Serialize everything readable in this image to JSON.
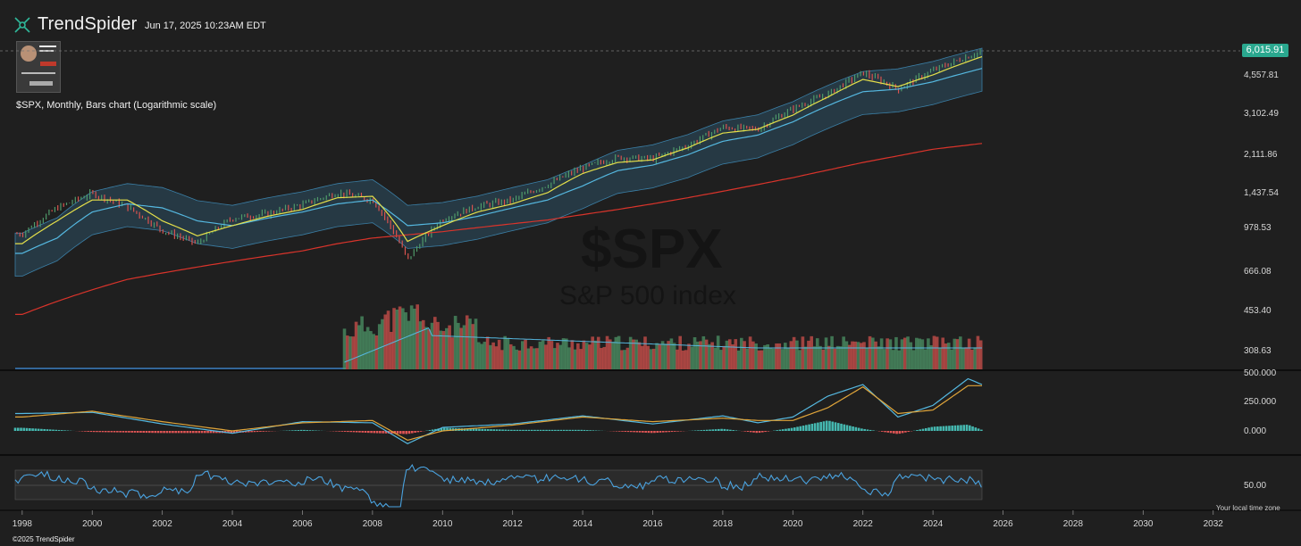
{
  "header": {
    "brand_name": "TrendSpider",
    "timestamp": "Jun 17, 2025 10:23AM EDT"
  },
  "chart_title": "$SPX, Monthly, Bars chart (Logarithmic scale)",
  "watermark": {
    "symbol": "$SPX",
    "name": "S&P 500 index"
  },
  "last_price": "6,015.91",
  "footer": {
    "timezone": "Your local time zone",
    "copyright": "©2025 TrendSpider"
  },
  "colors": {
    "background": "#1f1f1f",
    "up": "#4f9a6a",
    "down": "#d9534f",
    "price_badge": "#2aa88f",
    "band": "#3b7fa6",
    "ma_fast": "#e5e04a",
    "ma_slow": "#55b8e0",
    "ma_long": "#d9342b"
  },
  "chart_data": [
    {
      "type": "line",
      "subtype": "monthly price bars with moving averages and bands",
      "scale": "log",
      "x": [
        1998,
        1999,
        2000,
        2001,
        2002,
        2003,
        2004,
        2005,
        2006,
        2007,
        2008,
        2009,
        2010,
        2011,
        2012,
        2013,
        2014,
        2015,
        2016,
        2017,
        2018,
        2019,
        2020,
        2021,
        2022,
        2023,
        2024,
        2025.4
      ],
      "series": [
        {
          "values": [
            970,
            1250,
            1440,
            1260,
            1000,
            880,
            1130,
            1180,
            1290,
            1450,
            1350,
            750,
            1120,
            1270,
            1350,
            1570,
            1850,
            2050,
            2020,
            2300,
            2750,
            2700,
            3300,
            3800,
            4700,
            4000,
            4800,
            5800
          ]
        },
        {
          "values": [
            880,
            1100,
            1350,
            1350,
            1100,
            950,
            1050,
            1150,
            1230,
            1380,
            1400,
            900,
            1050,
            1200,
            1300,
            1450,
            1750,
            1950,
            2000,
            2250,
            2600,
            2700,
            3100,
            3700,
            4400,
            4100,
            4600,
            5500
          ]
        },
        {
          "values": [
            800,
            930,
            1200,
            1300,
            1250,
            1100,
            1050,
            1130,
            1200,
            1300,
            1350,
            1050,
            1080,
            1150,
            1250,
            1350,
            1550,
            1800,
            1900,
            2100,
            2400,
            2550,
            2900,
            3400,
            3900,
            4000,
            4300,
            4900
          ]
        },
        {
          "values": [
            440,
            500,
            560,
            620,
            660,
            700,
            740,
            780,
            820,
            880,
            930,
            960,
            990,
            1030,
            1070,
            1110,
            1170,
            1230,
            1300,
            1380,
            1470,
            1570,
            1680,
            1810,
            1950,
            2080,
            2220,
            2350
          ]
        }
      ],
      "yticks": [
        "6,015.91",
        "4,557.81",
        "3,102.49",
        "2,111.86",
        "1,437.54",
        "978.53",
        "666.08",
        "453.40",
        "308.63"
      ],
      "xticks": [
        "1998",
        "2000",
        "2002",
        "2004",
        "2006",
        "2008",
        "2010",
        "2012",
        "2014",
        "2016",
        "2018",
        "2020",
        "2022",
        "2024",
        "2026",
        "2028",
        "2030",
        "2032"
      ],
      "last_value": 6015.91
    },
    {
      "type": "bar",
      "subtype": "volume",
      "note_start": 2007
    },
    {
      "type": "line",
      "subtype": "macd",
      "yticks": [
        "500.000",
        "250.000",
        "0.000"
      ],
      "x": [
        1998,
        2000,
        2002,
        2004,
        2006,
        2008,
        2009,
        2010,
        2012,
        2014,
        2016,
        2018,
        2019,
        2020,
        2021,
        2022,
        2023,
        2024,
        2025,
        2025.4
      ],
      "series": [
        {
          "values": [
            150,
            160,
            60,
            -20,
            80,
            70,
            -110,
            30,
            60,
            130,
            60,
            130,
            70,
            120,
            300,
            400,
            120,
            220,
            450,
            400
          ]
        },
        {
          "values": [
            120,
            170,
            80,
            0,
            70,
            90,
            -80,
            0,
            50,
            120,
            80,
            110,
            90,
            90,
            200,
            380,
            150,
            180,
            390,
            390
          ]
        }
      ]
    },
    {
      "type": "line",
      "subtype": "rsi",
      "yticks": [
        "50.00"
      ]
    }
  ]
}
